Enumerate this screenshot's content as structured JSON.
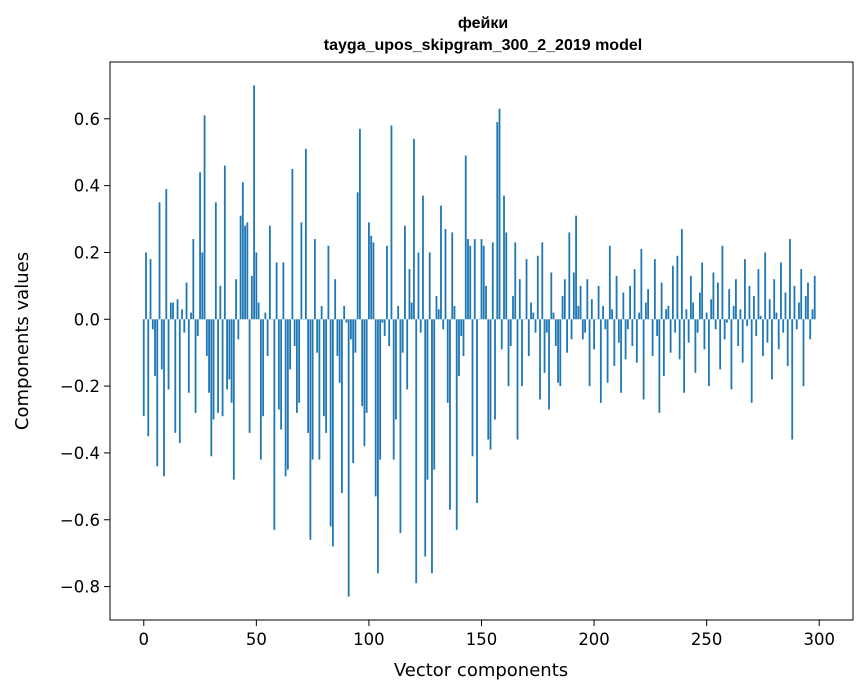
{
  "chart_data": {
    "type": "bar",
    "title": "фейки",
    "subtitle": "tayga_upos_skipgram_300_2_2019 model",
    "xlabel": "Vector components",
    "ylabel": "Components values",
    "xlim": [
      -15,
      315
    ],
    "ylim": [
      -0.9,
      0.77
    ],
    "xticks": [
      0,
      50,
      100,
      150,
      200,
      250,
      300
    ],
    "yticks": [
      -0.8,
      -0.6,
      -0.4,
      -0.2,
      0.0,
      0.2,
      0.4,
      0.6
    ],
    "xtick_labels": [
      "0",
      "50",
      "100",
      "150",
      "200",
      "250",
      "300"
    ],
    "ytick_labels": [
      "−0.8",
      "−0.6",
      "−0.4",
      "−0.2",
      "0.0",
      "0.2",
      "0.4",
      "0.6"
    ],
    "bar_color": "#1f77b4",
    "grid": false,
    "values": [
      -0.29,
      0.2,
      -0.35,
      0.18,
      -0.03,
      -0.17,
      -0.44,
      0.35,
      -0.15,
      -0.47,
      0.39,
      -0.21,
      0.05,
      0.05,
      -0.34,
      0.06,
      -0.37,
      0.03,
      -0.04,
      0.11,
      -0.22,
      0.02,
      0.24,
      -0.28,
      -0.05,
      0.44,
      0.2,
      0.61,
      -0.11,
      -0.22,
      -0.41,
      -0.3,
      0.35,
      -0.28,
      0.1,
      -0.29,
      0.46,
      -0.21,
      -0.18,
      -0.25,
      -0.48,
      0.12,
      -0.06,
      0.31,
      0.41,
      0.28,
      0.29,
      -0.34,
      0.13,
      0.7,
      0.2,
      0.05,
      -0.42,
      -0.29,
      0.02,
      -0.11,
      0.28,
      0.0,
      -0.63,
      0.17,
      -0.27,
      -0.33,
      0.17,
      -0.47,
      -0.45,
      -0.15,
      0.45,
      -0.08,
      -0.28,
      -0.25,
      0.29,
      0.0,
      0.51,
      -0.34,
      -0.66,
      -0.42,
      0.24,
      -0.1,
      -0.42,
      0.04,
      -0.29,
      -0.34,
      0.22,
      -0.62,
      -0.68,
      0.12,
      -0.11,
      -0.19,
      -0.52,
      0.04,
      -0.01,
      -0.83,
      -0.06,
      -0.43,
      -0.1,
      0.38,
      0.57,
      -0.26,
      -0.38,
      -0.28,
      0.29,
      0.25,
      0.23,
      -0.53,
      -0.76,
      -0.42,
      -0.01,
      -0.05,
      0.22,
      -0.08,
      0.58,
      -0.42,
      -0.3,
      0.04,
      -0.64,
      -0.1,
      0.28,
      -0.21,
      0.15,
      0.05,
      0.54,
      -0.79,
      0.2,
      -0.04,
      0.37,
      -0.71,
      -0.48,
      0.2,
      -0.76,
      -0.45,
      0.07,
      0.03,
      0.34,
      -0.03,
      0.27,
      -0.25,
      -0.57,
      0.26,
      0.04,
      -0.63,
      -0.17,
      -0.05,
      -0.11,
      0.49,
      0.24,
      0.22,
      -0.41,
      0.24,
      -0.55,
      0.0,
      0.24,
      0.22,
      0.1,
      -0.36,
      -0.39,
      0.23,
      -0.3,
      0.59,
      0.63,
      -0.09,
      0.37,
      0.26,
      -0.2,
      -0.08,
      0.07,
      0.23,
      -0.36,
      0.12,
      -0.2,
      0.0,
      0.18,
      -0.11,
      0.05,
      0.02,
      -0.04,
      0.19,
      -0.24,
      0.23,
      -0.16,
      -0.04,
      -0.27,
      0.14,
      0.02,
      -0.08,
      -0.19,
      -0.2,
      0.07,
      0.12,
      -0.1,
      0.26,
      -0.06,
      0.14,
      0.31,
      0.04,
      0.1,
      -0.06,
      -0.04,
      0.12,
      -0.2,
      0.06,
      -0.09,
      0.0,
      0.1,
      -0.25,
      0.04,
      -0.03,
      -0.19,
      0.22,
      0.03,
      -0.14,
      0.13,
      -0.07,
      -0.22,
      0.08,
      -0.12,
      -0.03,
      0.1,
      -0.08,
      0.15,
      -0.13,
      0.02,
      0.21,
      -0.24,
      0.05,
      0.09,
      0.0,
      -0.11,
      0.18,
      -0.05,
      -0.28,
      0.11,
      -0.17,
      0.03,
      0.04,
      -0.1,
      0.16,
      -0.04,
      0.19,
      -0.12,
      0.27,
      -0.22,
      0.03,
      -0.07,
      0.13,
      0.05,
      -0.16,
      -0.04,
      0.08,
      0.17,
      -0.09,
      0.02,
      -0.2,
      0.06,
      0.14,
      -0.03,
      0.11,
      -0.15,
      0.22,
      -0.06,
      -0.01,
      0.09,
      -0.21,
      0.04,
      0.12,
      -0.08,
      0.03,
      -0.13,
      0.18,
      -0.02,
      0.1,
      -0.25,
      0.07,
      -0.05,
      0.15,
      0.01,
      -0.11,
      0.2,
      -0.07,
      0.06,
      -0.18,
      0.12,
      0.02,
      -0.09,
      0.17,
      -0.04,
      0.08,
      -0.14,
      0.24,
      -0.36,
      0.1,
      -0.03,
      0.05,
      0.15,
      -0.2,
      0.07,
      0.11,
      -0.06,
      0.03,
      0.13
    ]
  }
}
